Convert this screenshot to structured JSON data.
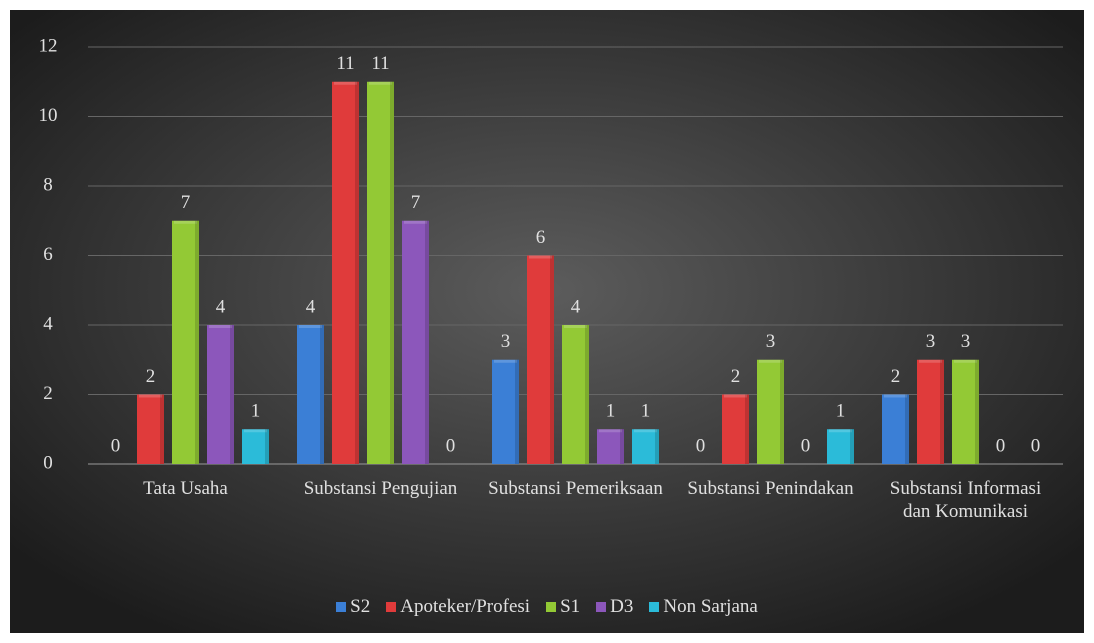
{
  "chart_data": {
    "type": "bar",
    "categories": [
      "Tata Usaha",
      "Substansi Pengujian",
      "Substansi Pemeriksaan",
      "Substansi Penindakan",
      "Substansi Informasi dan Komunikasi"
    ],
    "series": [
      {
        "name": "S2",
        "color": "#3b7fd6",
        "values": [
          0,
          4,
          3,
          0,
          2
        ]
      },
      {
        "name": "Apoteker/Profesi",
        "color": "#e03b3b",
        "values": [
          2,
          11,
          6,
          2,
          3
        ]
      },
      {
        "name": "S1",
        "color": "#93c935",
        "values": [
          7,
          11,
          4,
          3,
          3
        ]
      },
      {
        "name": "D3",
        "color": "#8c57bb",
        "values": [
          4,
          7,
          1,
          0,
          0
        ]
      },
      {
        "name": "Non Sarjana",
        "color": "#2bbbd9",
        "values": [
          1,
          0,
          1,
          1,
          0
        ]
      }
    ],
    "ylim": [
      0,
      12
    ],
    "yticks": [
      0,
      2,
      4,
      6,
      8,
      10,
      12
    ],
    "grid": true,
    "legend": "bottom"
  }
}
